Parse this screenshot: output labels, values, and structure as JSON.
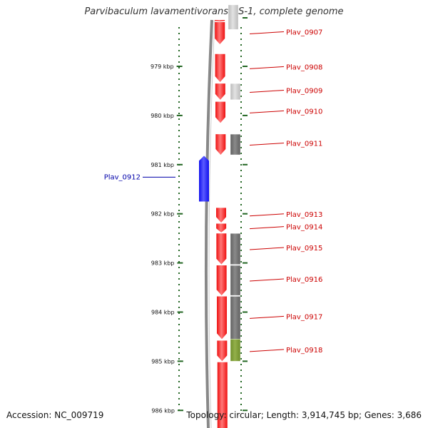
{
  "title": "Parvibaculum lavamentivorans DS-1, complete genome",
  "accession": "Accession: NC_009719",
  "topology": "Topology: circular; Length: 3,914,745 bp; Genes: 3,686",
  "colors": {
    "forward_cds": "#ee1111",
    "reverse_cds": "#1111ee",
    "label_forward": "#cc0000",
    "label_reverse": "#0000aa",
    "ticks": "#226622",
    "backbone": "#888888",
    "hit_light": "#bbbbbb",
    "hit_dark": "#606060",
    "hit_green": "#6e8e2a"
  },
  "ticks": [
    {
      "kbp": 979,
      "label": "979 kbp"
    },
    {
      "kbp": 980,
      "label": "980 kbp"
    },
    {
      "kbp": 981,
      "label": "981 kbp"
    },
    {
      "kbp": 982,
      "label": "982 kbp"
    },
    {
      "kbp": 983,
      "label": "983 kbp"
    },
    {
      "kbp": 984,
      "label": "984 kbp"
    },
    {
      "kbp": 985,
      "label": "985 kbp"
    },
    {
      "kbp": 986,
      "label": "986 kbp"
    }
  ],
  "genes": [
    {
      "start_kbp": 977.75,
      "end_kbp": 978.09,
      "strand": 1,
      "label": ""
    },
    {
      "start_kbp": 978.1,
      "end_kbp": 978.55,
      "strand": 1,
      "label": "Plav_0907"
    },
    {
      "start_kbp": 978.75,
      "end_kbp": 979.32,
      "strand": 1,
      "label": "Plav_0908"
    },
    {
      "start_kbp": 979.35,
      "end_kbp": 979.68,
      "strand": 1,
      "label": "Plav_0909"
    },
    {
      "start_kbp": 979.72,
      "end_kbp": 980.15,
      "strand": 1,
      "label": "Plav_0910"
    },
    {
      "start_kbp": 980.38,
      "end_kbp": 980.8,
      "strand": 1,
      "label": "Plav_0911"
    },
    {
      "start_kbp": 980.82,
      "end_kbp": 981.75,
      "strand": -1,
      "label": "Plav_0912"
    },
    {
      "start_kbp": 981.88,
      "end_kbp": 982.18,
      "strand": 1,
      "label": "Plav_0913"
    },
    {
      "start_kbp": 982.2,
      "end_kbp": 982.38,
      "strand": 1,
      "label": "Plav_0914"
    },
    {
      "start_kbp": 982.4,
      "end_kbp": 983.03,
      "strand": 1,
      "label": "Plav_0915"
    },
    {
      "start_kbp": 983.05,
      "end_kbp": 983.66,
      "strand": 1,
      "label": "Plav_0916"
    },
    {
      "start_kbp": 983.68,
      "end_kbp": 984.55,
      "strand": 1,
      "label": "Plav_0917"
    },
    {
      "start_kbp": 984.58,
      "end_kbp": 985.0,
      "strand": 1,
      "label": "Plav_0918"
    },
    {
      "start_kbp": 985.02,
      "end_kbp": 986.5,
      "strand": 1,
      "label": ""
    }
  ],
  "hits": [
    {
      "start_kbp": 977.75,
      "end_kbp": 978.25,
      "shade": "light"
    },
    {
      "start_kbp": 979.35,
      "end_kbp": 979.68,
      "shade": "light"
    },
    {
      "start_kbp": 980.38,
      "end_kbp": 980.8,
      "shade": "dark"
    },
    {
      "start_kbp": 982.4,
      "end_kbp": 983.03,
      "shade": "dark"
    },
    {
      "start_kbp": 983.05,
      "end_kbp": 983.66,
      "shade": "dark"
    },
    {
      "start_kbp": 983.68,
      "end_kbp": 984.55,
      "shade": "dark"
    },
    {
      "start_kbp": 984.55,
      "end_kbp": 985.0,
      "shade": "green"
    }
  ]
}
